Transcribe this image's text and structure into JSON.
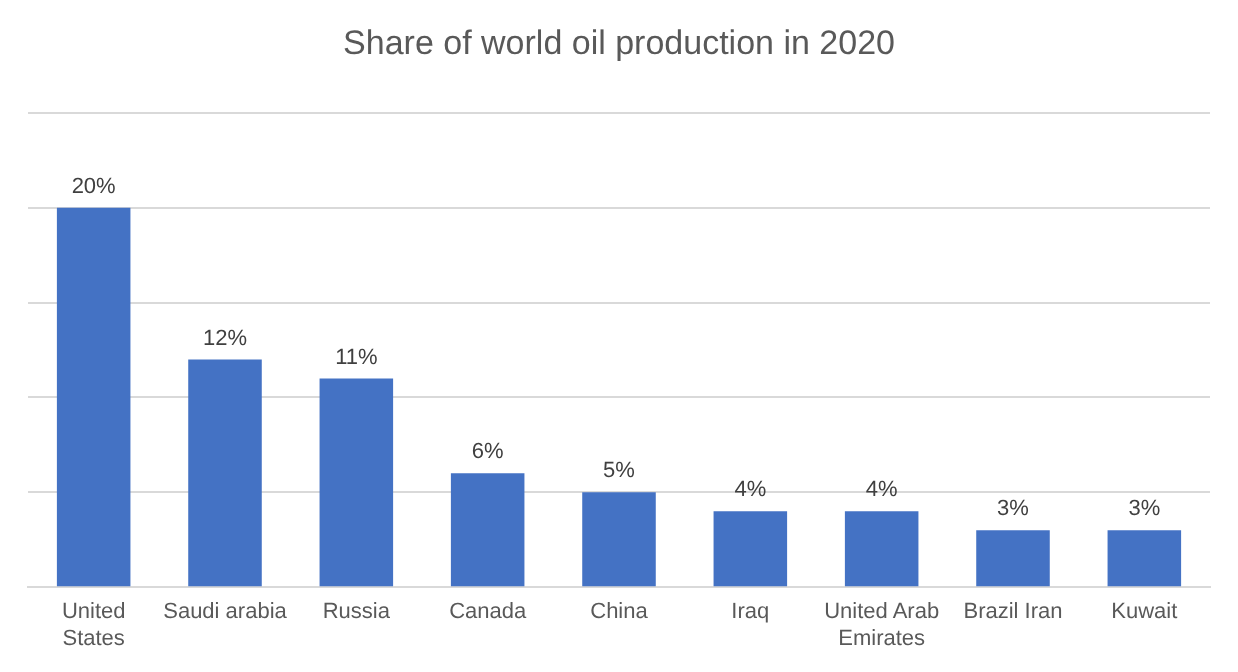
{
  "chart_data": {
    "type": "bar",
    "title": "Share of world oil production in 2020",
    "categories": [
      "United States",
      "Saudi arabia",
      "Russia",
      "Canada",
      "China",
      "Iraq",
      "United Arab Emirates",
      "Brazil Iran",
      "Kuwait"
    ],
    "values": [
      20,
      12,
      11,
      6,
      5,
      4,
      4,
      3,
      3
    ],
    "value_labels": [
      "20%",
      "12%",
      "11%",
      "6%",
      "5%",
      "4%",
      "4%",
      "3%",
      "3%"
    ],
    "color": "#4472c4",
    "ylim": [
      0,
      25
    ],
    "yticks": [
      {
        "value": 0,
        "label": null
      },
      {
        "value": 5,
        "label": null
      },
      {
        "value": 10,
        "label": null
      },
      {
        "value": 15,
        "label": null
      },
      {
        "value": 20,
        "label": null
      },
      {
        "value": 25,
        "label": null
      }
    ],
    "tick_labels": "x",
    "grid": "y",
    "legend": false
  }
}
